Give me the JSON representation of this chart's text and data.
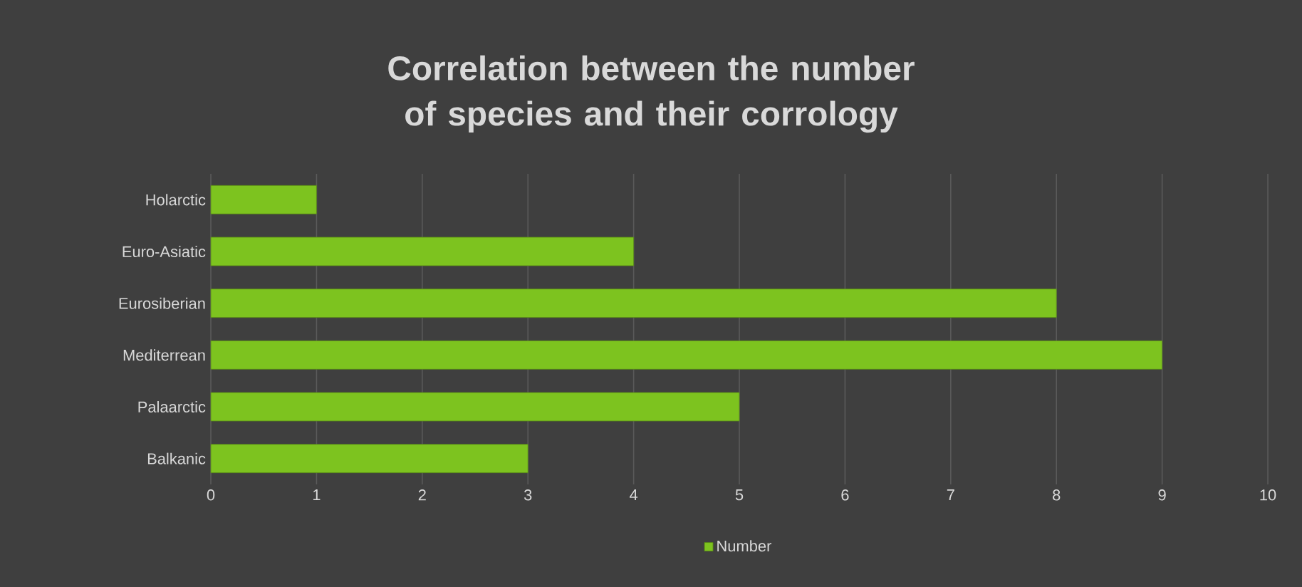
{
  "chart_data": {
    "type": "bar",
    "orientation": "horizontal",
    "title": "Correlation between the number of species and their corrology",
    "categories": [
      "Holarctic",
      "Euro-Asiatic",
      "Eurosiberian",
      "Mediterrean",
      "Palaarctic",
      "Balkanic"
    ],
    "series": [
      {
        "name": "Number",
        "color": "#7dc31f",
        "values": [
          1,
          4,
          8,
          9,
          5,
          3
        ]
      }
    ],
    "xlim": [
      0,
      10
    ],
    "xticks": [
      0,
      1,
      2,
      3,
      4,
      5,
      6,
      7,
      8,
      9,
      10
    ],
    "grid": "x",
    "legend": "bottom"
  }
}
